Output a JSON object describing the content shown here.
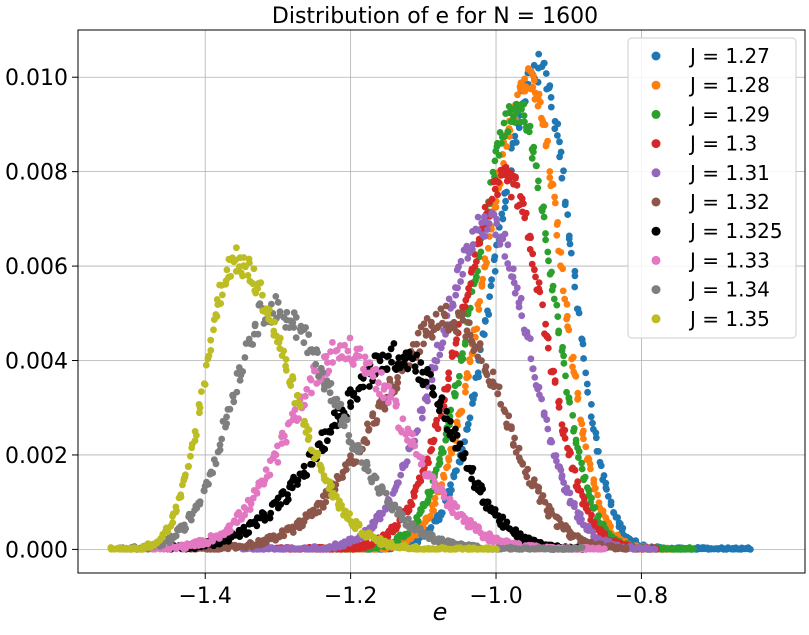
{
  "chart_data": {
    "type": "scatter",
    "title": "Distribution of  e for N = 1600",
    "xlabel": "e",
    "ylabel": "",
    "xlim": [
      -1.575,
      -0.575
    ],
    "ylim": [
      -0.0005,
      0.011
    ],
    "x_ticks": [
      -1.4,
      -1.2,
      -1.0,
      -0.8
    ],
    "x_tick_labels": [
      "−1.4",
      "−1.2",
      "−1.0",
      "−0.8"
    ],
    "y_ticks": [
      0.0,
      0.002,
      0.004,
      0.006,
      0.008,
      0.01
    ],
    "y_tick_labels": [
      "0.000",
      "0.002",
      "0.004",
      "0.006",
      "0.008",
      "0.010"
    ],
    "grid": true,
    "legend_position": "top-right",
    "series": [
      {
        "name": "J = 1.27",
        "color": "#1f77b4",
        "peak_x": -0.94,
        "peak_y": 0.0102,
        "sigma_left": 0.06,
        "sigma_right": 0.045,
        "x_range": [
          -1.2,
          -0.65
        ]
      },
      {
        "name": "J = 1.28",
        "color": "#ff7f0e",
        "peak_x": -0.955,
        "peak_y": 0.0099,
        "sigma_left": 0.06,
        "sigma_right": 0.045,
        "x_range": [
          -1.22,
          -0.76
        ]
      },
      {
        "name": "J = 1.29",
        "color": "#2ca02c",
        "peak_x": -0.97,
        "peak_y": 0.0093,
        "sigma_left": 0.06,
        "sigma_right": 0.048,
        "x_range": [
          -1.25,
          -0.73
        ]
      },
      {
        "name": "J = 1.3",
        "color": "#d62728",
        "peak_x": -0.985,
        "peak_y": 0.0078,
        "sigma_left": 0.065,
        "sigma_right": 0.052,
        "x_range": [
          -1.3,
          -0.78
        ]
      },
      {
        "name": "J = 1.31",
        "color": "#9467bd",
        "peak_x": -1.01,
        "peak_y": 0.0069,
        "sigma_left": 0.07,
        "sigma_right": 0.058,
        "x_range": [
          -1.35,
          -0.78
        ]
      },
      {
        "name": "J = 1.32",
        "color": "#8c564b",
        "peak_x": -1.06,
        "peak_y": 0.0049,
        "sigma_left": 0.1,
        "sigma_right": 0.07,
        "x_range": [
          -1.43,
          -0.82
        ]
      },
      {
        "name": "J = 1.325",
        "color": "#000000",
        "peak_x": -1.13,
        "peak_y": 0.0041,
        "sigma_left": 0.1,
        "sigma_right": 0.07,
        "x_range": [
          -1.45,
          -0.88
        ]
      },
      {
        "name": "J = 1.33",
        "color": "#e377c2",
        "peak_x": -1.21,
        "peak_y": 0.0042,
        "sigma_left": 0.075,
        "sigma_right": 0.085,
        "x_range": [
          -1.5,
          -0.85
        ]
      },
      {
        "name": "J = 1.34",
        "color": "#7f7f7f",
        "peak_x": -1.31,
        "peak_y": 0.0051,
        "sigma_left": 0.055,
        "sigma_right": 0.09,
        "x_range": [
          -1.52,
          -0.88
        ]
      },
      {
        "name": "J = 1.35",
        "color": "#bcbd22",
        "peak_x": -1.36,
        "peak_y": 0.0061,
        "sigma_left": 0.04,
        "sigma_right": 0.075,
        "x_range": [
          -1.53,
          -1.0
        ]
      }
    ]
  }
}
